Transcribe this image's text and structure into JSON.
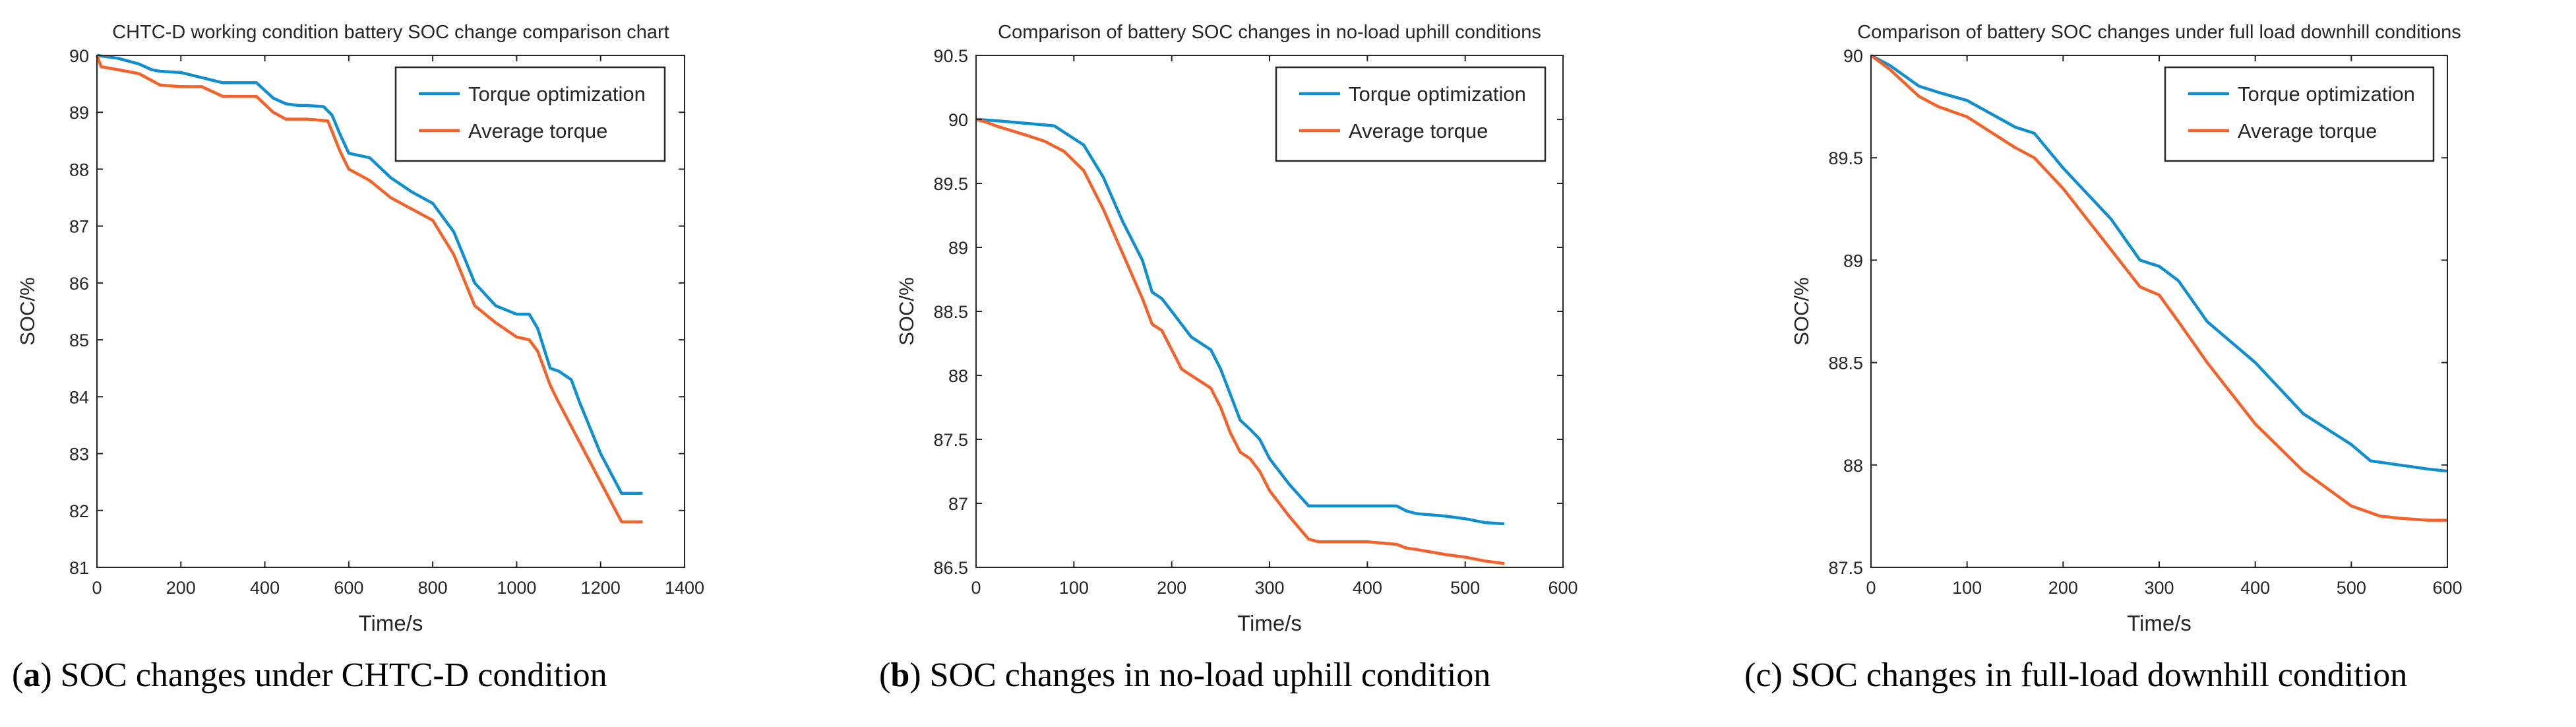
{
  "chart_data": [
    {
      "type": "line",
      "title": "CHTC-D working condition battery SOC change comparison chart",
      "xlabel": "Time/s",
      "ylabel": "SOC/%",
      "xlim": [
        0,
        1400
      ],
      "ylim": [
        81,
        90
      ],
      "xticks": [
        "0",
        "200",
        "400",
        "600",
        "800",
        "1000",
        "1200",
        "1400"
      ],
      "yticks": [
        "81",
        "82",
        "83",
        "84",
        "85",
        "86",
        "87",
        "88",
        "89",
        "90"
      ],
      "legend_position": "top-right",
      "series": [
        {
          "name": "Torque optimization",
          "color": "#0f8fd0",
          "x": [
            0,
            50,
            100,
            130,
            150,
            200,
            300,
            320,
            380,
            420,
            450,
            480,
            500,
            540,
            560,
            580,
            600,
            650,
            700,
            750,
            800,
            850,
            900,
            950,
            1000,
            1030,
            1050,
            1080,
            1100,
            1130,
            1150,
            1200,
            1250,
            1300
          ],
          "y": [
            90,
            89.95,
            89.85,
            89.75,
            89.72,
            89.7,
            89.52,
            89.52,
            89.52,
            89.25,
            89.15,
            89.12,
            89.12,
            89.1,
            88.95,
            88.6,
            88.28,
            88.2,
            87.85,
            87.6,
            87.4,
            86.9,
            86.0,
            85.6,
            85.45,
            85.45,
            85.2,
            84.5,
            84.45,
            84.3,
            83.9,
            83.0,
            82.3,
            82.3
          ]
        },
        {
          "name": "Average torque",
          "color": "#f4622a",
          "x": [
            0,
            10,
            50,
            100,
            150,
            200,
            250,
            300,
            380,
            420,
            450,
            500,
            550,
            580,
            600,
            650,
            700,
            750,
            800,
            850,
            900,
            950,
            1000,
            1030,
            1050,
            1080,
            1100,
            1150,
            1200,
            1250,
            1300
          ],
          "y": [
            90,
            89.8,
            89.75,
            89.68,
            89.48,
            89.45,
            89.45,
            89.28,
            89.28,
            89.0,
            88.88,
            88.88,
            88.85,
            88.3,
            88.0,
            87.8,
            87.5,
            87.3,
            87.1,
            86.5,
            85.6,
            85.3,
            85.05,
            85.0,
            84.8,
            84.2,
            83.9,
            83.2,
            82.5,
            81.8,
            81.8
          ]
        }
      ]
    },
    {
      "type": "line",
      "title": "Comparison of battery SOC changes in no-load uphill conditions",
      "xlabel": "Time/s",
      "ylabel": "SOC/%",
      "xlim": [
        0,
        600
      ],
      "ylim": [
        86.5,
        90.5
      ],
      "xticks": [
        "0",
        "100",
        "200",
        "300",
        "400",
        "500",
        "600"
      ],
      "yticks": [
        "86.5",
        "87",
        "87.5",
        "88",
        "88.5",
        "89",
        "89.5",
        "90",
        "90.5"
      ],
      "legend_position": "top-right",
      "series": [
        {
          "name": "Torque optimization",
          "color": "#0f8fd0",
          "x": [
            0,
            20,
            50,
            80,
            100,
            110,
            130,
            150,
            170,
            180,
            190,
            200,
            210,
            220,
            240,
            250,
            260,
            270,
            280,
            290,
            300,
            320,
            340,
            350,
            400,
            430,
            440,
            450,
            480,
            500,
            520,
            540
          ],
          "y": [
            90.0,
            89.99,
            89.97,
            89.95,
            89.85,
            89.8,
            89.55,
            89.2,
            88.9,
            88.65,
            88.6,
            88.5,
            88.4,
            88.3,
            88.2,
            88.05,
            87.85,
            87.65,
            87.58,
            87.5,
            87.35,
            87.15,
            86.98,
            86.98,
            86.98,
            86.98,
            86.94,
            86.92,
            86.9,
            86.88,
            86.85,
            86.84
          ]
        },
        {
          "name": "Average torque",
          "color": "#f4622a",
          "x": [
            0,
            10,
            20,
            50,
            70,
            90,
            110,
            130,
            150,
            170,
            180,
            190,
            200,
            210,
            220,
            240,
            250,
            260,
            270,
            280,
            290,
            300,
            320,
            340,
            350,
            400,
            430,
            440,
            450,
            480,
            500,
            520,
            540
          ],
          "y": [
            90.0,
            89.98,
            89.95,
            89.88,
            89.83,
            89.75,
            89.6,
            89.3,
            88.95,
            88.6,
            88.4,
            88.35,
            88.2,
            88.05,
            88.0,
            87.9,
            87.75,
            87.55,
            87.4,
            87.35,
            87.25,
            87.1,
            86.9,
            86.72,
            86.7,
            86.7,
            86.68,
            86.65,
            86.64,
            86.6,
            86.58,
            86.55,
            86.53
          ]
        }
      ]
    },
    {
      "type": "line",
      "title": "Comparison of battery SOC changes under full load downhill conditions",
      "xlabel": "Time/s",
      "ylabel": "SOC/%",
      "xlim": [
        0,
        600
      ],
      "ylim": [
        87.5,
        90
      ],
      "xticks": [
        "0",
        "100",
        "200",
        "300",
        "400",
        "500",
        "600"
      ],
      "yticks": [
        "87.5",
        "88",
        "88.5",
        "89",
        "89.5",
        "90"
      ],
      "legend_position": "top-right",
      "series": [
        {
          "name": "Torque optimization",
          "color": "#0f8fd0",
          "x": [
            0,
            20,
            50,
            70,
            100,
            150,
            170,
            200,
            250,
            280,
            300,
            320,
            350,
            400,
            450,
            500,
            520,
            550,
            580,
            600
          ],
          "y": [
            90,
            89.95,
            89.85,
            89.82,
            89.78,
            89.65,
            89.62,
            89.45,
            89.2,
            89.0,
            88.97,
            88.9,
            88.7,
            88.5,
            88.25,
            88.1,
            88.02,
            88.0,
            87.98,
            87.97
          ]
        },
        {
          "name": "Average torque",
          "color": "#f4622a",
          "x": [
            0,
            20,
            50,
            70,
            100,
            150,
            170,
            200,
            250,
            280,
            300,
            320,
            350,
            400,
            450,
            500,
            530,
            550,
            580,
            600
          ],
          "y": [
            90,
            89.93,
            89.8,
            89.75,
            89.7,
            89.55,
            89.5,
            89.35,
            89.05,
            88.87,
            88.83,
            88.7,
            88.5,
            88.2,
            87.97,
            87.8,
            87.75,
            87.74,
            87.73,
            87.73
          ]
        }
      ]
    }
  ],
  "captions": [
    {
      "letter": "a",
      "text": " SOC changes under CHTC-D condition"
    },
    {
      "letter": "b",
      "text": " SOC changes in no-load uphill condition"
    },
    {
      "letter": "c",
      "text": " SOC changes in full-load downhill condition"
    }
  ]
}
